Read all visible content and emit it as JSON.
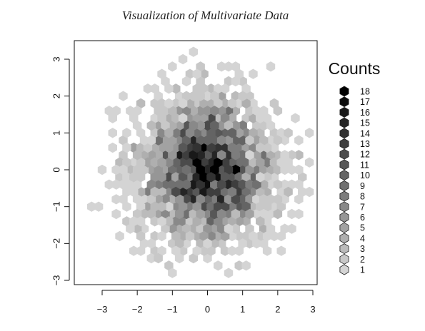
{
  "chart_data": {
    "type": "heatmap",
    "subtype": "hexbin",
    "title": "Visualization of Multivariate Data",
    "xlabel": "",
    "ylabel": "",
    "xlim": [
      -3.5,
      3.0
    ],
    "ylim": [
      -3.2,
      3.3
    ],
    "x_ticks": [
      -3,
      -2,
      -1,
      0,
      1,
      2,
      3
    ],
    "y_ticks": [
      -3,
      -2,
      -1,
      0,
      1,
      2,
      3
    ],
    "tick_labels": {
      "x": [
        "−3",
        "−2",
        "−1",
        "0",
        "1",
        "2",
        "3"
      ],
      "y": [
        "−3",
        "−2",
        "−1",
        "0",
        "1",
        "2",
        "3"
      ]
    },
    "grid": false,
    "hex_spacing": [
      0.2,
      0.2
    ],
    "count_range": [
      1,
      18
    ],
    "color_scale": {
      "low": "#d4d4d4",
      "high": "#000000"
    },
    "note": "approximately bivariate standard normal point cloud, densest near (0, 0)",
    "legend": {
      "title": "Counts",
      "position": "right",
      "entries": [
        "18",
        "17",
        "16",
        "15",
        "14",
        "13",
        "12",
        "11",
        "10",
        "9",
        "8",
        "7",
        "6",
        "5",
        "4",
        "3",
        "2",
        "1"
      ]
    }
  }
}
